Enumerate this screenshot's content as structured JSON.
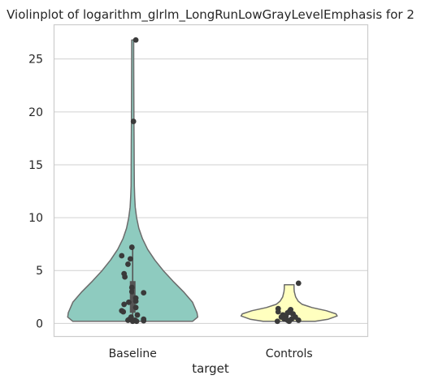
{
  "chart_data": {
    "type": "violin",
    "title": "Violinplot of logarithm_glrlm_LongRunLowGrayLevelEmphasis for 2",
    "xlabel": "target",
    "ylabel": "",
    "categories": [
      "Baseline",
      "Controls"
    ],
    "ylim": [
      -1.2,
      28.2
    ],
    "yticks": [
      0,
      5,
      10,
      15,
      20,
      25
    ],
    "grid": "horizontal",
    "colors": {
      "Baseline": "#8ecbbf",
      "Controls": "#ffffbf",
      "outline": "#6b6b6b",
      "points": "#3a3a3a",
      "grid": "#d0d0d0",
      "axes_border": "#cccccc"
    },
    "violins": [
      {
        "category": "Baseline",
        "profile": [
          [
            0.2,
            0.92
          ],
          [
            0.6,
            1.0
          ],
          [
            1.0,
            0.99
          ],
          [
            2.0,
            0.92
          ],
          [
            3.0,
            0.78
          ],
          [
            4.0,
            0.62
          ],
          [
            5.0,
            0.47
          ],
          [
            6.0,
            0.34
          ],
          [
            7.0,
            0.23
          ],
          [
            8.0,
            0.15
          ],
          [
            9.0,
            0.095
          ],
          [
            10.0,
            0.06
          ],
          [
            11.0,
            0.04
          ],
          [
            12.0,
            0.03
          ],
          [
            13.0,
            0.025
          ],
          [
            15.0,
            0.023
          ],
          [
            17.0,
            0.022
          ],
          [
            19.0,
            0.02
          ],
          [
            21.0,
            0.018
          ],
          [
            23.0,
            0.017
          ],
          [
            25.0,
            0.016
          ],
          [
            26.8,
            0.016
          ]
        ],
        "quartiles": {
          "q1": 1.0,
          "median": 3.0,
          "q3": 4.0,
          "whisker_low": 0.2,
          "whisker_high": 7.3
        },
        "points": [
          {
            "x_jitter": 0.04,
            "y": 26.8
          },
          {
            "x_jitter": 0.01,
            "y": 19.1
          },
          {
            "x_jitter": -0.01,
            "y": 7.2
          },
          {
            "x_jitter": -0.14,
            "y": 6.4
          },
          {
            "x_jitter": -0.03,
            "y": 6.1
          },
          {
            "x_jitter": -0.06,
            "y": 5.6
          },
          {
            "x_jitter": -0.11,
            "y": 4.7
          },
          {
            "x_jitter": -0.1,
            "y": 4.4
          },
          {
            "x_jitter": -0.01,
            "y": 3.4
          },
          {
            "x_jitter": -0.01,
            "y": 3.0
          },
          {
            "x_jitter": 0.14,
            "y": 2.9
          },
          {
            "x_jitter": 0.04,
            "y": 2.4
          },
          {
            "x_jitter": 0.04,
            "y": 2.1
          },
          {
            "x_jitter": -0.05,
            "y": 2.0
          },
          {
            "x_jitter": -0.11,
            "y": 1.8
          },
          {
            "x_jitter": 0.04,
            "y": 1.5
          },
          {
            "x_jitter": -0.14,
            "y": 1.2
          },
          {
            "x_jitter": -0.12,
            "y": 1.1
          },
          {
            "x_jitter": 0.06,
            "y": 0.8
          },
          {
            "x_jitter": -0.02,
            "y": 0.6
          },
          {
            "x_jitter": -0.04,
            "y": 0.4
          },
          {
            "x_jitter": 0.14,
            "y": 0.4
          },
          {
            "x_jitter": -0.06,
            "y": 0.3
          },
          {
            "x_jitter": 0.03,
            "y": 0.3
          },
          {
            "x_jitter": 0.14,
            "y": 0.25
          },
          {
            "x_jitter": 0.0,
            "y": 0.2
          },
          {
            "x_jitter": 0.05,
            "y": 0.2
          }
        ]
      },
      {
        "category": "Controls",
        "profile": [
          [
            0.2,
            0.4
          ],
          [
            0.4,
            0.6
          ],
          [
            0.7,
            0.74
          ],
          [
            0.9,
            0.72
          ],
          [
            1.2,
            0.57
          ],
          [
            1.5,
            0.35
          ],
          [
            1.8,
            0.2
          ],
          [
            2.1,
            0.14
          ],
          [
            2.5,
            0.1
          ],
          [
            3.0,
            0.08
          ],
          [
            3.3,
            0.075
          ],
          [
            3.65,
            0.075
          ]
        ],
        "quartiles": {
          "q1": 0.3,
          "median": 0.6,
          "q3": 1.0,
          "whisker_low": 0.1,
          "whisker_high": 1.5
        },
        "points": [
          {
            "x_jitter": 0.12,
            "y": 3.8
          },
          {
            "x_jitter": -0.14,
            "y": 1.4
          },
          {
            "x_jitter": 0.02,
            "y": 1.3
          },
          {
            "x_jitter": 0.01,
            "y": 1.2
          },
          {
            "x_jitter": -0.14,
            "y": 1.1
          },
          {
            "x_jitter": -0.02,
            "y": 1.0
          },
          {
            "x_jitter": 0.05,
            "y": 0.9
          },
          {
            "x_jitter": -0.08,
            "y": 0.8
          },
          {
            "x_jitter": -0.04,
            "y": 0.7
          },
          {
            "x_jitter": 0.08,
            "y": 0.6
          },
          {
            "x_jitter": -0.1,
            "y": 0.6
          },
          {
            "x_jitter": 0.03,
            "y": 0.4
          },
          {
            "x_jitter": -0.06,
            "y": 0.4
          },
          {
            "x_jitter": 0.12,
            "y": 0.3
          },
          {
            "x_jitter": -0.02,
            "y": 0.3
          },
          {
            "x_jitter": -0.15,
            "y": 0.2
          },
          {
            "x_jitter": 0.0,
            "y": 0.2
          }
        ]
      }
    ]
  }
}
